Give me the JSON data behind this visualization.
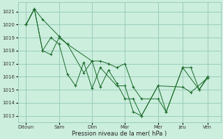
{
  "background_color": "#cceedd",
  "grid_color": "#99ccbb",
  "line_color": "#1a6b2a",
  "marker_color": "#1a6b2a",
  "xlabel": "Pression niveau de la mer( hPa )",
  "ylim": [
    1012.5,
    1021.7
  ],
  "yticks": [
    1013,
    1014,
    1015,
    1016,
    1017,
    1018,
    1019,
    1020,
    1021
  ],
  "xtick_labels": [
    "Ditoun",
    "Sam",
    "Dim",
    "Mar",
    "Mer",
    "Jeu",
    "Ven"
  ],
  "xtick_positions": [
    0,
    2,
    4,
    6,
    8,
    9.5,
    11
  ],
  "series1_x": [
    0,
    0.5,
    1.0,
    2.0,
    2.5,
    4.0,
    4.5,
    5.0,
    5.5,
    6.0,
    6.5,
    7.0,
    8.0,
    8.5,
    9.5,
    10.0,
    10.5,
    11.0
  ],
  "series1_y": [
    1020.0,
    1021.2,
    1020.4,
    1019.1,
    1018.5,
    1017.2,
    1017.2,
    1017.0,
    1016.7,
    1017.0,
    1015.2,
    1014.3,
    1014.3,
    1013.3,
    1016.7,
    1016.7,
    1015.0,
    1016.0
  ],
  "series2_x": [
    0,
    0.5,
    1.0,
    1.5,
    2.0,
    2.5,
    3.5,
    4.0,
    4.5,
    5.0,
    5.5,
    6.0,
    6.5,
    7.0,
    8.0,
    9.5,
    10.0,
    11.0
  ],
  "series2_y": [
    1020.0,
    1021.2,
    1018.0,
    1017.7,
    1019.0,
    1018.5,
    1016.3,
    1017.2,
    1015.2,
    1016.5,
    1015.5,
    1014.3,
    1014.3,
    1013.0,
    1015.3,
    1015.2,
    1014.8,
    1015.9
  ],
  "series3_x": [
    0,
    0.5,
    1.0,
    1.5,
    2.0,
    2.5,
    3.0,
    3.5,
    4.0,
    4.5,
    5.5,
    6.0,
    6.5,
    7.0,
    8.0,
    8.5,
    9.5,
    10.5,
    11.0
  ],
  "series3_y": [
    1020.0,
    1021.2,
    1018.0,
    1019.0,
    1018.5,
    1016.2,
    1015.3,
    1017.1,
    1015.1,
    1016.7,
    1015.3,
    1015.3,
    1013.3,
    1013.0,
    1015.3,
    1013.3,
    1016.7,
    1015.0,
    1015.9
  ]
}
